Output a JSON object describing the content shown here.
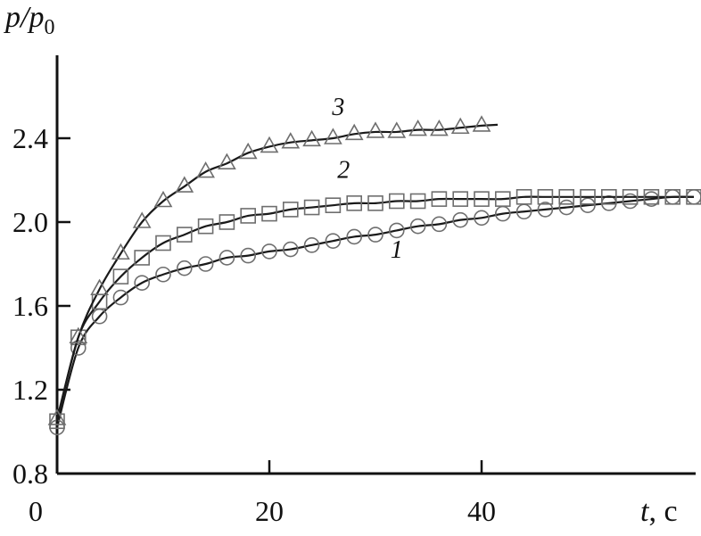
{
  "chart_data": {
    "type": "line",
    "title": "",
    "ylabel": {
      "main": "p/p",
      "sub": "0"
    },
    "xlabel": {
      "var": "t",
      "unit": ", c"
    },
    "xlim": [
      0,
      60
    ],
    "ylim": [
      0.8,
      2.8
    ],
    "xticks": [
      "0",
      "20",
      "40"
    ],
    "xtick_values": [
      0,
      20,
      40
    ],
    "yticks": [
      "0.8",
      "1.2",
      "1.6",
      "2.0",
      "2.4"
    ],
    "ytick_values": [
      0.8,
      1.2,
      1.6,
      2.0,
      2.4
    ],
    "grid": false,
    "line_color": "#1a1a1a",
    "marker_color": "#6e6e6e",
    "series": [
      {
        "name": "1",
        "marker": "circle",
        "x": [
          0,
          2,
          4,
          6,
          8,
          10,
          12,
          14,
          16,
          18,
          20,
          22,
          24,
          26,
          28,
          30,
          32,
          34,
          36,
          38,
          40,
          42,
          44,
          46,
          48,
          50,
          52,
          54,
          56,
          58,
          60
        ],
        "y": [
          1.02,
          1.4,
          1.55,
          1.64,
          1.71,
          1.75,
          1.78,
          1.8,
          1.83,
          1.84,
          1.86,
          1.87,
          1.89,
          1.91,
          1.93,
          1.94,
          1.96,
          1.98,
          1.99,
          2.01,
          2.02,
          2.04,
          2.05,
          2.06,
          2.07,
          2.08,
          2.09,
          2.1,
          2.11,
          2.12,
          2.12
        ]
      },
      {
        "name": "2",
        "marker": "square",
        "x": [
          0,
          2,
          4,
          6,
          8,
          10,
          12,
          14,
          16,
          18,
          20,
          22,
          24,
          26,
          28,
          30,
          32,
          34,
          36,
          38,
          40,
          42,
          44,
          46,
          48,
          50,
          52,
          54,
          56,
          58,
          60
        ],
        "y": [
          1.05,
          1.45,
          1.62,
          1.74,
          1.83,
          1.9,
          1.94,
          1.98,
          2.0,
          2.03,
          2.04,
          2.06,
          2.07,
          2.08,
          2.09,
          2.09,
          2.1,
          2.1,
          2.11,
          2.11,
          2.11,
          2.11,
          2.12,
          2.12,
          2.12,
          2.12,
          2.12,
          2.12,
          2.12,
          2.12,
          2.12
        ]
      },
      {
        "name": "3",
        "marker": "triangle",
        "x": [
          0,
          2,
          4,
          6,
          8,
          10,
          12,
          14,
          16,
          18,
          20,
          22,
          24,
          26,
          28,
          30,
          32,
          34,
          36,
          38,
          40
        ],
        "y": [
          1.06,
          1.45,
          1.68,
          1.85,
          2.0,
          2.1,
          2.17,
          2.24,
          2.28,
          2.33,
          2.36,
          2.38,
          2.39,
          2.4,
          2.42,
          2.43,
          2.43,
          2.44,
          2.44,
          2.45,
          2.46
        ]
      }
    ],
    "curve_labels": [
      {
        "text": "1",
        "x": 32,
        "y": 1.83
      },
      {
        "text": "2",
        "x": 27,
        "y": 2.21
      },
      {
        "text": "3",
        "x": 26.5,
        "y": 2.51
      }
    ]
  }
}
